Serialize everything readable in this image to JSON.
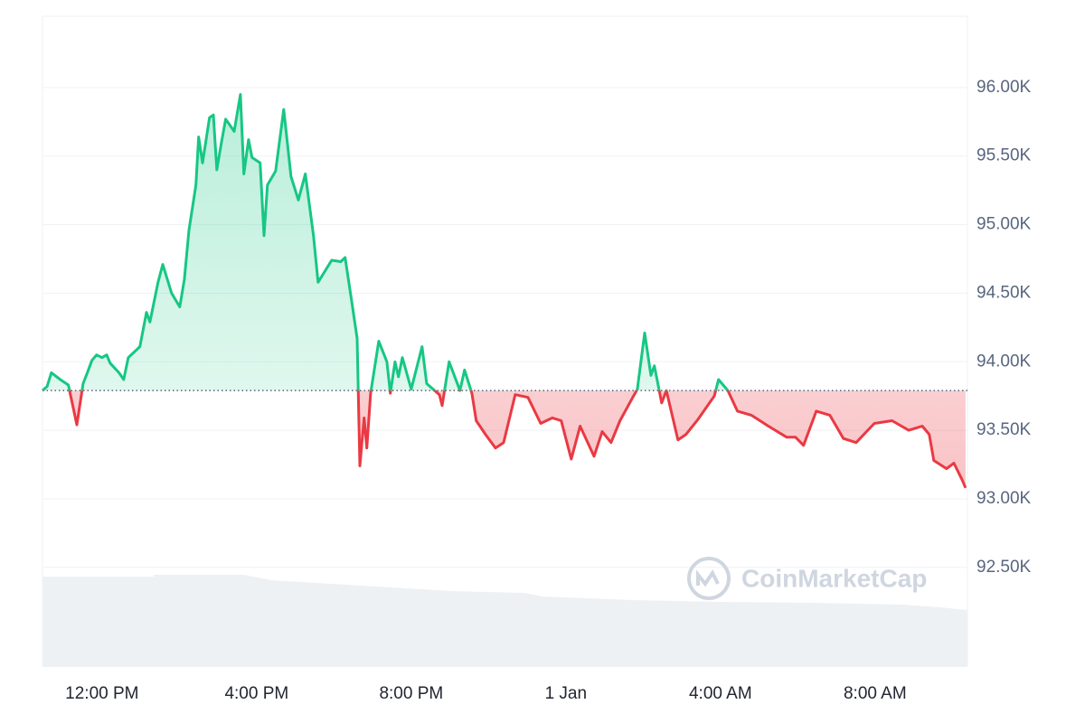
{
  "chart_data": {
    "type": "line",
    "x": [
      -1.54,
      -1.42,
      -1.31,
      -1.08,
      -0.87,
      -0.65,
      -0.49,
      -0.38,
      -0.26,
      -0.14,
      0,
      0.12,
      0.21,
      0.44,
      0.56,
      0.68,
      0.98,
      1.15,
      1.24,
      1.45,
      1.57,
      1.8,
      2.01,
      2.13,
      2.25,
      2.43,
      2.5,
      2.6,
      2.78,
      2.88,
      2.97,
      3.09,
      3.2,
      3.42,
      3.58,
      3.67,
      3.79,
      3.88,
      4.09,
      4.19,
      4.28,
      4.49,
      4.7,
      4.89,
      5.08,
      5.26,
      5.47,
      5.59,
      5.94,
      6.18,
      6.29,
      6.48,
      6.6,
      6.67,
      6.78,
      6.85,
      6.95,
      7.16,
      7.37,
      7.46,
      7.58,
      7.67,
      7.77,
      8,
      8.28,
      8.4,
      8.73,
      8.8,
      8.98,
      9.26,
      9.38,
      9.57,
      9.68,
      9.92,
      10.18,
      10.39,
      10.69,
      11.02,
      11.35,
      11.65,
      11.88,
      12.14,
      12.37,
      12.73,
      12.94,
      13.17,
      13.4,
      13.73,
      13.85,
      14.04,
      14.2,
      14.29,
      14.48,
      14.6,
      14.9,
      15.11,
      15.42,
      15.84,
      15.95,
      16.19,
      16.44,
      16.8,
      17.24,
      17.71,
      17.94,
      18.15,
      18.48,
      18.83,
      19.18,
      19.51,
      19.98,
      20.44,
      20.87,
      21.22,
      21.4,
      21.52,
      21.85,
      22.04,
      22.25,
      22.34
    ],
    "values": [
      93790,
      93820,
      93920,
      93870,
      93830,
      93540,
      93840,
      93920,
      94010,
      94050,
      94030,
      94050,
      93990,
      93920,
      93870,
      94030,
      94110,
      94360,
      94290,
      94580,
      94710,
      94500,
      94400,
      94600,
      94960,
      95290,
      95640,
      95450,
      95780,
      95800,
      95400,
      95600,
      95770,
      95680,
      95950,
      95370,
      95620,
      95490,
      95450,
      94920,
      95290,
      95390,
      95840,
      95350,
      95180,
      95370,
      94920,
      94580,
      94740,
      94730,
      94760,
      94400,
      94170,
      93240,
      93590,
      93370,
      93770,
      94150,
      94000,
      93770,
      94000,
      93890,
      94030,
      93800,
      94110,
      93840,
      93760,
      93680,
      94000,
      93790,
      93940,
      93770,
      93570,
      93470,
      93370,
      93410,
      93760,
      93740,
      93550,
      93590,
      93570,
      93290,
      93530,
      93310,
      93490,
      93410,
      93570,
      93740,
      93800,
      94210,
      93900,
      93970,
      93700,
      93790,
      93430,
      93470,
      93580,
      93750,
      93870,
      93790,
      93640,
      93610,
      93530,
      93450,
      93450,
      93390,
      93640,
      93610,
      93440,
      93410,
      93550,
      93570,
      93500,
      93530,
      93470,
      93280,
      93220,
      93260,
      93140,
      93080
    ],
    "baseline": 93790,
    "up_color": "#16c784",
    "down_color": "#ea3943",
    "xlim": [
      -1.54,
      22.39
    ],
    "xticks": [
      {
        "value": 0,
        "label": "12:00 PM"
      },
      {
        "value": 4,
        "label": "4:00 PM"
      },
      {
        "value": 8,
        "label": "8:00 PM"
      },
      {
        "value": 12,
        "label": "1 Jan"
      },
      {
        "value": 16,
        "label": "4:00 AM"
      },
      {
        "value": 20,
        "label": "8:00 AM"
      }
    ],
    "ylim": [
      91780,
      96520
    ],
    "yticks": [
      {
        "value": 92500,
        "label": "92.50K"
      },
      {
        "value": 93000,
        "label": "93.00K"
      },
      {
        "value": 93500,
        "label": "93.50K"
      },
      {
        "value": 94000,
        "label": "94.00K"
      },
      {
        "value": 94500,
        "label": "94.50K"
      },
      {
        "value": 95000,
        "label": "95.00K"
      },
      {
        "value": 95500,
        "label": "95.50K"
      },
      {
        "value": 96000,
        "label": "96.00K"
      }
    ],
    "grid": true,
    "watermark": "CoinMarketCap"
  }
}
